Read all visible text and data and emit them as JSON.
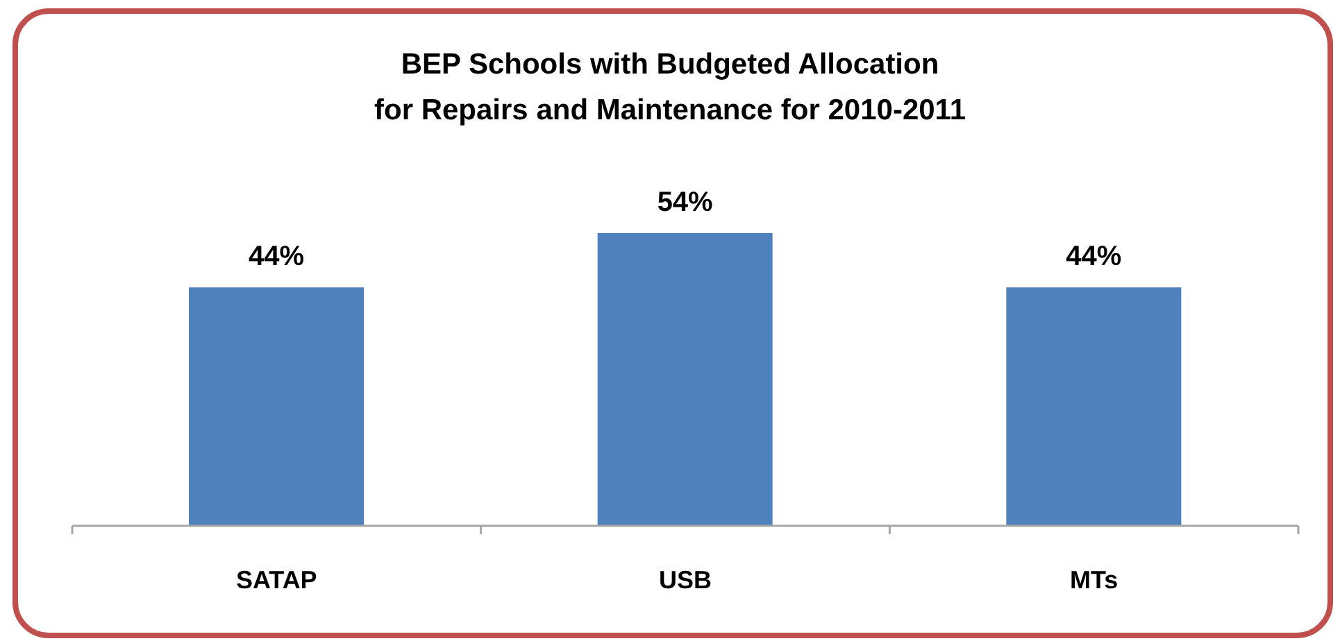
{
  "chart_data": {
    "type": "bar",
    "title": "BEP Schools with Budgeted Allocation\nfor Repairs and Maintenance for 2010-2011",
    "categories": [
      "SATAP",
      "USB",
      "MTs"
    ],
    "values": [
      44,
      54,
      44
    ],
    "value_labels": [
      "44%",
      "54%",
      "44%"
    ],
    "color": "#4f81bd"
  }
}
